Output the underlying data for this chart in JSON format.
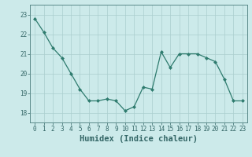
{
  "x": [
    0,
    1,
    2,
    3,
    4,
    5,
    6,
    7,
    8,
    9,
    10,
    11,
    12,
    13,
    14,
    15,
    16,
    17,
    18,
    19,
    20,
    21,
    22,
    23
  ],
  "y": [
    22.8,
    22.1,
    21.3,
    20.8,
    20.0,
    19.2,
    18.6,
    18.6,
    18.7,
    18.6,
    18.1,
    18.3,
    19.3,
    19.2,
    21.1,
    20.3,
    21.0,
    21.0,
    21.0,
    20.8,
    20.6,
    19.7,
    18.6,
    18.6
  ],
  "line_color": "#2e7b6e",
  "marker": "D",
  "marker_size": 2.0,
  "bg_color": "#cceaea",
  "grid_color": "#aacece",
  "xlabel": "Humidex (Indice chaleur)",
  "xlim": [
    -0.5,
    23.5
  ],
  "ylim": [
    17.5,
    23.5
  ],
  "yticks": [
    18,
    19,
    20,
    21,
    22,
    23
  ],
  "xticks": [
    0,
    1,
    2,
    3,
    4,
    5,
    6,
    7,
    8,
    9,
    10,
    11,
    12,
    13,
    14,
    15,
    16,
    17,
    18,
    19,
    20,
    21,
    22,
    23
  ],
  "tick_fontsize": 5.5,
  "xlabel_fontsize": 7.5,
  "axis_color": "#336666",
  "spine_color": "#5a8a8a",
  "linewidth": 0.9
}
